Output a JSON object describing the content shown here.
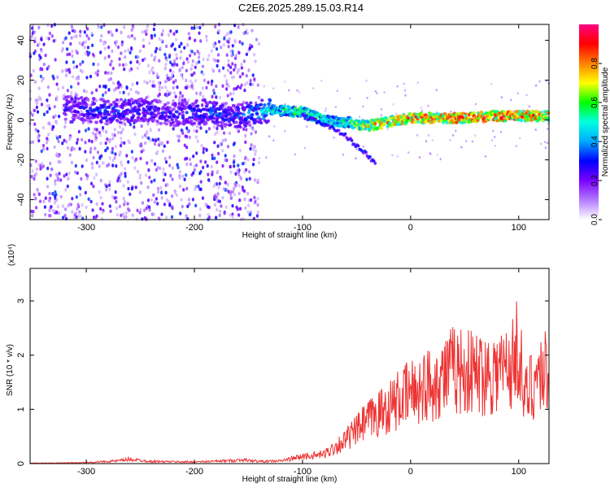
{
  "title": "C2E6.2025.289.15.03.R14",
  "chart_data": [
    {
      "type": "heatmap",
      "xlabel": "Height of straight line (km)",
      "ylabel": "Frequency (Hz)",
      "xlim": [
        -352,
        128
      ],
      "ylim": [
        -50,
        48
      ],
      "x_ticks": [
        -300,
        -200,
        -100,
        0,
        100
      ],
      "y_ticks": [
        -40,
        -20,
        0,
        20,
        40
      ],
      "colorbar": {
        "label": "Normalized spectral amplitude",
        "range": [
          0,
          1
        ],
        "ticks": [
          0.0,
          0.2,
          0.4,
          0.6,
          0.8
        ],
        "colors": [
          "#ffffff",
          "#b27bff",
          "#7b00ff",
          "#0000ff",
          "#00aaff",
          "#00ffe0",
          "#00ff00",
          "#ffff00",
          "#ff8000",
          "#ff0000",
          "#ff0080"
        ]
      },
      "ridge": {
        "x": [
          -310,
          -280,
          -250,
          -220,
          -190,
          -160,
          -130,
          -100,
          -80,
          -60,
          -40,
          -20,
          0,
          40,
          80,
          128
        ],
        "y": [
          6,
          4,
          5,
          3,
          4,
          2,
          5,
          4,
          0,
          -1,
          -3,
          -1,
          1,
          1,
          2,
          2
        ],
        "amp": [
          0.3,
          0.35,
          0.3,
          0.3,
          0.35,
          0.35,
          0.5,
          0.6,
          0.55,
          0.55,
          0.75,
          0.8,
          0.85,
          0.9,
          0.9,
          0.85
        ]
      },
      "branch": {
        "x": [
          -100,
          -80,
          -60,
          -45,
          -32
        ],
        "y": [
          2,
          -2,
          -8,
          -15,
          -22
        ]
      }
    },
    {
      "type": "line",
      "xlabel": "Height of straight line (km)",
      "ylabel": "SNR (10 * v/v)",
      "y_multiplier": "(x10⁴)",
      "xlim": [
        -352,
        128
      ],
      "ylim": [
        0,
        3.6
      ],
      "x_ticks": [
        -300,
        -200,
        -100,
        0,
        100
      ],
      "y_ticks": [
        0,
        1,
        2,
        3
      ],
      "color": "#ee3333",
      "series": [
        {
          "name": "",
          "x": [
            -352,
            -330,
            -300,
            -270,
            -260,
            -240,
            -200,
            -170,
            -155,
            -140,
            -120,
            -100,
            -80,
            -60,
            -40,
            -20,
            0,
            20,
            40,
            60,
            80,
            95,
            100,
            105,
            110,
            115,
            120,
            128
          ],
          "y": [
            0.01,
            0.01,
            0.02,
            0.05,
            0.08,
            0.04,
            0.03,
            0.05,
            0.07,
            0.04,
            0.05,
            0.13,
            0.2,
            0.5,
            0.9,
            1.2,
            1.5,
            1.7,
            2.0,
            1.9,
            1.95,
            2.1,
            2.6,
            1.3,
            1.6,
            1.8,
            1.9,
            2.0
          ]
        }
      ]
    }
  ]
}
